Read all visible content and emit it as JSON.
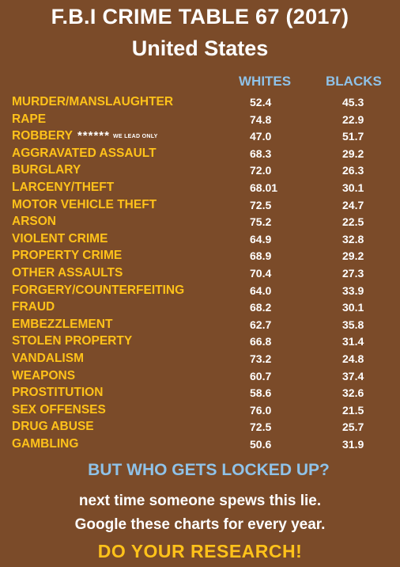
{
  "header": {
    "title": "F.B.I CRIME TABLE 67 (2017)",
    "subtitle": "United States"
  },
  "columns": {
    "whites": "WHITES",
    "blacks": "BLACKS"
  },
  "rows": [
    {
      "label": "MURDER/MANSLAUGHTER",
      "whites": "52.4",
      "blacks": "45.3"
    },
    {
      "label": "RAPE",
      "whites": "74.8",
      "blacks": "22.9"
    },
    {
      "label": "ROBBERY",
      "note": "******",
      "note_small": "WE LEAD ONLY",
      "whites": "47.0",
      "blacks": "51.7"
    },
    {
      "label": "AGGRAVATED ASSAULT",
      "whites": "68.3",
      "blacks": "29.2"
    },
    {
      "label": "BURGLARY",
      "whites": "72.0",
      "blacks": "26.3"
    },
    {
      "label": "LARCENY/THEFT",
      "whites": "68.01",
      "blacks": "30.1"
    },
    {
      "label": "MOTOR VEHICLE THEFT",
      "whites": "72.5",
      "blacks": "24.7"
    },
    {
      "label": "ARSON",
      "whites": "75.2",
      "blacks": "22.5"
    },
    {
      "label": "VIOLENT CRIME",
      "whites": "64.9",
      "blacks": "32.8"
    },
    {
      "label": "PROPERTY CRIME",
      "whites": "68.9",
      "blacks": "29.2"
    },
    {
      "label": "OTHER ASSAULTS",
      "whites": "70.4",
      "blacks": "27.3"
    },
    {
      "label": "FORGERY/COUNTERFEITING",
      "whites": "64.0",
      "blacks": "33.9"
    },
    {
      "label": "FRAUD",
      "whites": "68.2",
      "blacks": "30.1"
    },
    {
      "label": "EMBEZZLEMENT",
      "whites": "62.7",
      "blacks": "35.8"
    },
    {
      "label": "STOLEN PROPERTY",
      "whites": "66.8",
      "blacks": "31.4"
    },
    {
      "label": "VANDALISM",
      "whites": "73.2",
      "blacks": "24.8"
    },
    {
      "label": "WEAPONS",
      "whites": "60.7",
      "blacks": "37.4"
    },
    {
      "label": "PROSTITUTION",
      "whites": "58.6",
      "blacks": "32.6"
    },
    {
      "label": "SEX OFFENSES",
      "whites": "76.0",
      "blacks": "21.5"
    },
    {
      "label": "DRUG ABUSE",
      "whites": "72.5",
      "blacks": "25.7"
    },
    {
      "label": "GAMBLING",
      "whites": "50.6",
      "blacks": "31.9"
    }
  ],
  "footer": {
    "question": "BUT WHO GETS LOCKED UP?",
    "line1": "next time someone spews this lie.",
    "line2": "Google these charts for every year.",
    "cta": "DO YOUR RESEARCH!"
  },
  "colors": {
    "background": "#7b4b29",
    "label_yellow": "#ffc21a",
    "header_blue": "#8fc2e8",
    "value_white": "#ffffff"
  }
}
